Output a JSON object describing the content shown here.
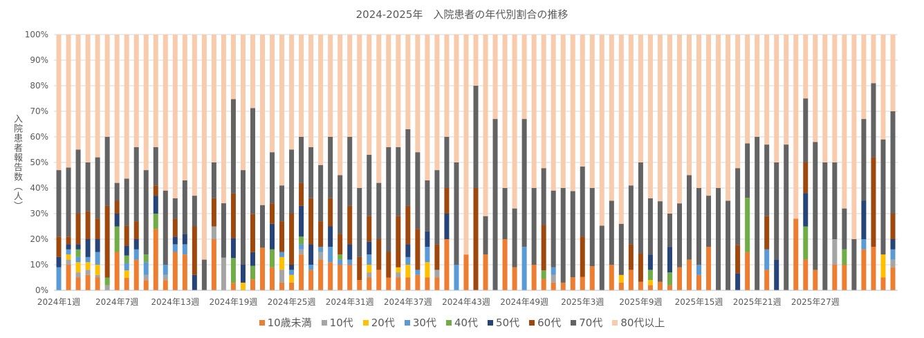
{
  "chart_data": {
    "type": "bar",
    "stacked": true,
    "percent_stacked": true,
    "title": "2024-2025年　入院患者の年代別割合の推移",
    "ylabel": "入院患者報告数（人）",
    "ylim": [
      0,
      100
    ],
    "yticks": [
      "0%",
      "10%",
      "20%",
      "30%",
      "40%",
      "50%",
      "60%",
      "70%",
      "80%",
      "90%",
      "100%"
    ],
    "xtick_labels": [
      "2024年1週",
      "2024年7週",
      "2024年13週",
      "2024年19週",
      "2024年25週",
      "2024年31週",
      "2024年37週",
      "2024年43週",
      "2024年49週",
      "2025年3週",
      "2025年9週",
      "2025年15週",
      "2025年21週",
      "2025年27週"
    ],
    "xtick_every": 6,
    "grid": true,
    "legend_position": "bottom",
    "series": [
      {
        "name": "10歳未満",
        "color": "#ED7D31",
        "values": [
          0,
          10,
          5,
          6,
          5,
          0,
          15,
          5,
          12,
          4,
          24,
          4,
          15,
          14,
          0,
          0,
          20,
          0,
          3,
          0,
          4,
          15,
          9,
          3,
          3,
          14,
          8,
          12,
          11,
          10,
          10,
          4,
          5,
          8,
          5,
          5,
          5,
          6,
          5,
          5,
          20,
          0,
          14,
          0,
          14,
          0,
          20,
          9,
          0,
          10,
          4,
          3,
          3,
          5,
          5,
          8,
          0,
          10,
          3,
          8,
          3,
          2,
          3,
          2,
          9,
          12,
          6,
          17,
          0,
          0,
          0,
          14,
          0,
          8,
          0,
          0,
          28,
          12,
          8,
          0,
          10,
          10,
          0,
          16,
          17,
          5,
          9
        ]
      },
      {
        "name": "10代",
        "color": "#A5A5A5",
        "values": [
          0,
          2,
          2,
          2,
          1,
          2,
          0,
          0,
          0,
          2,
          0,
          2,
          0,
          0,
          0,
          0,
          5,
          12,
          0,
          0,
          0,
          0,
          0,
          5,
          0,
          2,
          0,
          3,
          0,
          0,
          0,
          0,
          2,
          0,
          0,
          2,
          0,
          0,
          0,
          3,
          0,
          0,
          0,
          0,
          0,
          0,
          0,
          0,
          0,
          0,
          0,
          3,
          0,
          0,
          0,
          0,
          0,
          0,
          0,
          0,
          0,
          0,
          0,
          0,
          0,
          0,
          0,
          0,
          0,
          0,
          0,
          0,
          0,
          0,
          0,
          0,
          0,
          0,
          0,
          0,
          10,
          0,
          0,
          0,
          0,
          0,
          3
        ]
      },
      {
        "name": "20代",
        "color": "#FFC000",
        "values": [
          0,
          2,
          4,
          3,
          4,
          0,
          0,
          3,
          0,
          0,
          0,
          0,
          0,
          0,
          0,
          0,
          0,
          0,
          0,
          3,
          0,
          0,
          0,
          5,
          3,
          0,
          0,
          0,
          0,
          0,
          0,
          0,
          3,
          0,
          0,
          2,
          5,
          0,
          6,
          0,
          0,
          0,
          0,
          0,
          0,
          0,
          0,
          0,
          0,
          0,
          0,
          0,
          0,
          0,
          0,
          0,
          0,
          0,
          3,
          0,
          0,
          2,
          0,
          0,
          0,
          0,
          0,
          0,
          0,
          0,
          0,
          0,
          0,
          0,
          0,
          0,
          0,
          0,
          0,
          0,
          0,
          0,
          0,
          0,
          0,
          9,
          0
        ]
      },
      {
        "name": "30代",
        "color": "#5B9BD5",
        "values": [
          9,
          2,
          2,
          2,
          5,
          0,
          0,
          3,
          4,
          5,
          0,
          4,
          3,
          4,
          0,
          0,
          0,
          0,
          0,
          0,
          0,
          0,
          0,
          2,
          2,
          2,
          2,
          2,
          6,
          2,
          2,
          0,
          4,
          0,
          0,
          0,
          3,
          2,
          6,
          0,
          0,
          10,
          0,
          0,
          0,
          0,
          0,
          0,
          17,
          0,
          0,
          3,
          0,
          0,
          0,
          0,
          0,
          0,
          0,
          0,
          0,
          0,
          0,
          0,
          0,
          0,
          4,
          0,
          0,
          0,
          0,
          0,
          0,
          8,
          0,
          0,
          0,
          0,
          0,
          0,
          0,
          0,
          0,
          4,
          0,
          0,
          4
        ]
      },
      {
        "name": "40代",
        "color": "#70AD47",
        "values": [
          0,
          0,
          3,
          0,
          0,
          3,
          10,
          3,
          0,
          3,
          6,
          0,
          0,
          0,
          0,
          0,
          0,
          0,
          10,
          0,
          5,
          0,
          7,
          0,
          0,
          3,
          0,
          0,
          0,
          2,
          0,
          0,
          0,
          0,
          0,
          0,
          0,
          0,
          0,
          0,
          0,
          0,
          0,
          0,
          0,
          0,
          0,
          0,
          0,
          0,
          3,
          0,
          0,
          0,
          0,
          0,
          0,
          0,
          0,
          0,
          0,
          4,
          0,
          5,
          0,
          0,
          0,
          0,
          0,
          0,
          0,
          20,
          0,
          0,
          0,
          0,
          0,
          13,
          0,
          0,
          0,
          6,
          0,
          0,
          0,
          0,
          0
        ]
      },
      {
        "name": "50代",
        "color": "#264478",
        "values": [
          4,
          2,
          2,
          7,
          5,
          0,
          5,
          4,
          4,
          0,
          7,
          0,
          3,
          4,
          6,
          0,
          0,
          0,
          8,
          7,
          5,
          0,
          10,
          0,
          2,
          12,
          8,
          0,
          8,
          0,
          6,
          0,
          5,
          0,
          0,
          0,
          5,
          0,
          6,
          0,
          10,
          0,
          0,
          0,
          0,
          0,
          0,
          0,
          0,
          0,
          0,
          0,
          0,
          0,
          0,
          0,
          0,
          0,
          0,
          0,
          0,
          6,
          0,
          10,
          0,
          0,
          0,
          0,
          0,
          0,
          6,
          0,
          0,
          0,
          12,
          0,
          0,
          13,
          0,
          0,
          0,
          0,
          0,
          15,
          0,
          0,
          4
        ]
      },
      {
        "name": "60代",
        "color": "#9E480E",
        "values": [
          8,
          3,
          12,
          11,
          8,
          28,
          5,
          8,
          7,
          0,
          4,
          0,
          7,
          0,
          19,
          0,
          11,
          0,
          18,
          0,
          14,
          0,
          8,
          12,
          20,
          9,
          18,
          10,
          11,
          8,
          15,
          9,
          10,
          12,
          10,
          20,
          15,
          16,
          0,
          10,
          10,
          0,
          0,
          40,
          0,
          0,
          0,
          0,
          0,
          0,
          16,
          0,
          0,
          0,
          15,
          0,
          0,
          0,
          0,
          10,
          10,
          0,
          0,
          0,
          0,
          0,
          0,
          0,
          0,
          0,
          10,
          0,
          0,
          13,
          0,
          0,
          0,
          12,
          0,
          0,
          0,
          0,
          0,
          0,
          35,
          0,
          10
        ]
      },
      {
        "name": "70代",
        "color": "#636363",
        "values": [
          26,
          27,
          25,
          19,
          24,
          27,
          7,
          19,
          29,
          33,
          15,
          29,
          8,
          21,
          12,
          12,
          14,
          20,
          38,
          37,
          39,
          15,
          20,
          14,
          25,
          18,
          20,
          22,
          24,
          23,
          27,
          27,
          24,
          22,
          41,
          27,
          30,
          30,
          20,
          29,
          20,
          40,
          0,
          40,
          15,
          67,
          20,
          23,
          50,
          30,
          20,
          30,
          37,
          33,
          26,
          26,
          24,
          25,
          20,
          23,
          32,
          22,
          28,
          13,
          25,
          33,
          30,
          20,
          40,
          35,
          27,
          20,
          60,
          28,
          38,
          57,
          0,
          25,
          50,
          50,
          30,
          16,
          20,
          32,
          29,
          45,
          40
        ]
      },
      {
        "name": "80代以上",
        "color": "#F8CBAD",
        "values": [
          53,
          52,
          45,
          50,
          48,
          40,
          58,
          58,
          44,
          53,
          44,
          61,
          64,
          57,
          63,
          88,
          50,
          62,
          26,
          53,
          27,
          60,
          46,
          59,
          45,
          40,
          44,
          51,
          40,
          55,
          40,
          60,
          47,
          58,
          44,
          44,
          37,
          46,
          57,
          53,
          40,
          50,
          86,
          20,
          71,
          33,
          60,
          68,
          33,
          60,
          47,
          61,
          60,
          60,
          49,
          51,
          71,
          65,
          74,
          59,
          45,
          64,
          58,
          70,
          66,
          55,
          60,
          63,
          60,
          65,
          47,
          40,
          40,
          43,
          50,
          43,
          72,
          25,
          42,
          50,
          50,
          68,
          80,
          33,
          19,
          41,
          30
        ]
      }
    ]
  }
}
